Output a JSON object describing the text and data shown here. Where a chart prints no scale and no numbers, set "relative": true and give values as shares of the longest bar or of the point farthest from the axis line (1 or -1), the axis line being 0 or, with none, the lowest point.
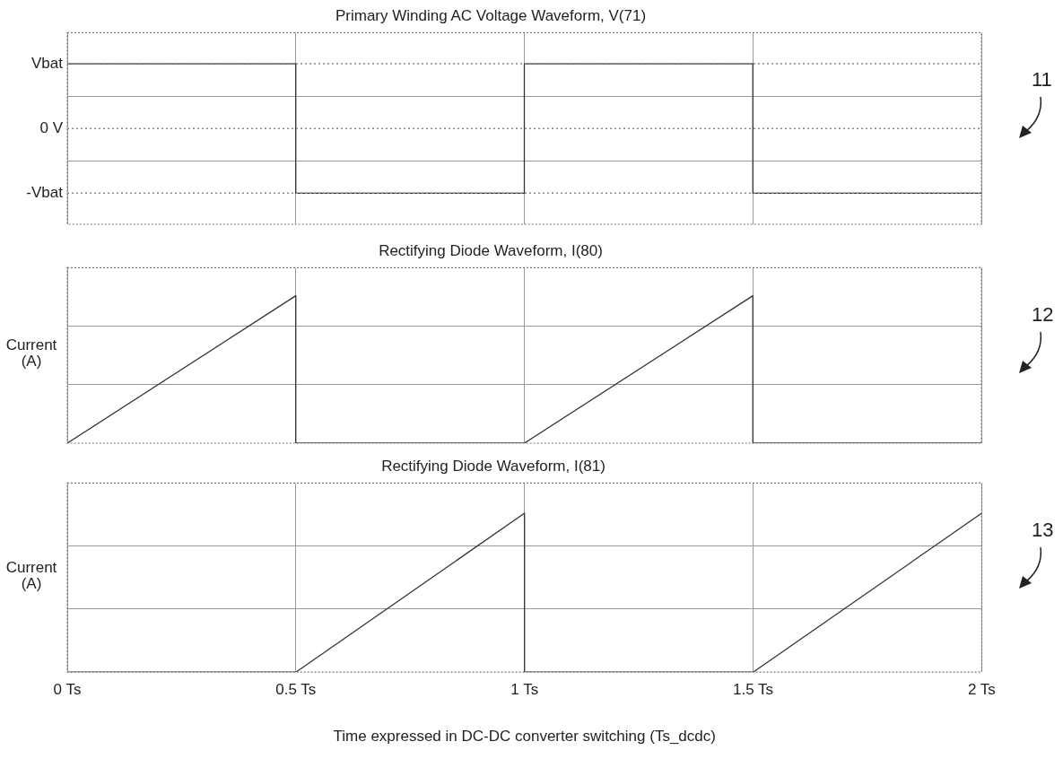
{
  "chart_data": [
    {
      "type": "line",
      "title": "Primary Winding AC Voltage Waveform, V(71)",
      "relative": true,
      "annotations": [
        "11"
      ],
      "ref_lines": [
        {
          "axis": "y",
          "value": 1,
          "label": "Vbat",
          "color": "#888888",
          "line_style": "dotted"
        },
        {
          "axis": "y",
          "value": 0,
          "label": "0 V",
          "color": "#888888",
          "line_style": "dotted"
        },
        {
          "axis": "y",
          "value": -1,
          "label": "-Vbat",
          "color": "#888888",
          "line_style": "dotted"
        }
      ],
      "series": [
        {
          "color": "#333333",
          "x": [
            0,
            0.5,
            0.5,
            1,
            1,
            1.5,
            1.5,
            2
          ],
          "values": [
            1,
            1,
            -1,
            -1,
            1,
            1,
            -1,
            -1
          ]
        }
      ],
      "xlim": [
        0,
        2
      ],
      "xticks": [
        {
          "value": 0,
          "label": null
        },
        {
          "value": 0.5,
          "label": null
        },
        {
          "value": 1,
          "label": null
        },
        {
          "value": 1.5,
          "label": null
        },
        {
          "value": 2,
          "label": null
        }
      ],
      "grid": true,
      "tick_labels": false,
      "marker": "none",
      "line_style": "solid"
    },
    {
      "type": "line",
      "title": "Rectifying Diode Waveform, I(80)",
      "ylabel": "Current (A)",
      "annotations": [
        "12"
      ],
      "relative": true,
      "series": [
        {
          "color": "#333333",
          "x": [
            0,
            0.5,
            0.5,
            1,
            1.5,
            1.5,
            2
          ],
          "values": [
            0,
            1,
            0,
            0,
            1,
            0,
            0
          ]
        }
      ],
      "xlim": [
        0,
        2
      ],
      "xticks": [
        {
          "value": 0,
          "label": null
        },
        {
          "value": 0.5,
          "label": null
        },
        {
          "value": 1,
          "label": null
        },
        {
          "value": 1.5,
          "label": null
        },
        {
          "value": 2,
          "label": null
        }
      ],
      "grid": true,
      "tick_labels": false,
      "marker": "none",
      "line_style": "solid"
    },
    {
      "type": "line",
      "title": "Rectifying Diode Waveform, I(81)",
      "ylabel": "Current (A)",
      "xlabel": "Time expressed in DC-DC converter switching (Ts_dcdc)",
      "annotations": [
        "13"
      ],
      "relative": true,
      "series": [
        {
          "color": "#333333",
          "x": [
            0,
            0.5,
            1,
            1,
            1.5,
            2
          ],
          "values": [
            0,
            0,
            1,
            0,
            0,
            1
          ]
        }
      ],
      "xlim": [
        0,
        2
      ],
      "xticks": [
        {
          "value": 0,
          "label": "0 Ts"
        },
        {
          "value": 0.5,
          "label": "0.5 Ts"
        },
        {
          "value": 1,
          "label": "1 Ts"
        },
        {
          "value": 1.5,
          "label": "1.5 Ts"
        },
        {
          "value": 2,
          "label": "2 Ts"
        }
      ],
      "grid": true,
      "tick_labels": "x",
      "marker": "none",
      "line_style": "solid"
    }
  ]
}
